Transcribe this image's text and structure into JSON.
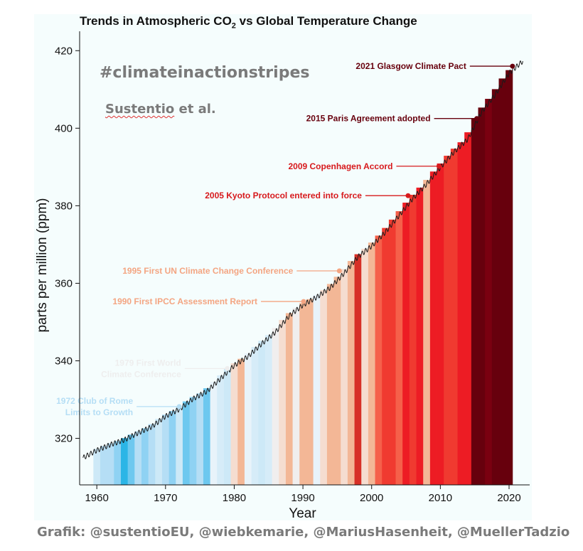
{
  "title_main": "Trends in Atmospheric CO",
  "title_sub": "2",
  "title_rest": " vs Global Temperature Change",
  "hashtag": "#climateinactionstripes",
  "author_name": "Sustentio",
  "author_suffix": " et al.",
  "credit": "Grafik: @sustentioEU, @wiebkemarie, @MariusHasenheit, @MuellerTadzio",
  "chart_data": {
    "type": "line",
    "xlabel": "Year",
    "ylabel": "parts per million (ppm)",
    "xlim": [
      1957.5,
      2023
    ],
    "ylim": [
      308,
      425
    ],
    "xticks": [
      1960,
      1970,
      1980,
      1990,
      2000,
      2010,
      2020
    ],
    "yticks": [
      320,
      340,
      360,
      380,
      400,
      420
    ],
    "grid": false,
    "series": [
      {
        "x": [
          1958,
          1960,
          1962,
          1964,
          1966,
          1968,
          1970,
          1972,
          1974,
          1976,
          1978,
          1980,
          1982,
          1984,
          1986,
          1988,
          1990,
          1992,
          1994,
          1996,
          1998,
          2000,
          2002,
          2004,
          2006,
          2008,
          2010,
          2012,
          2014,
          2016,
          2018,
          2020,
          2022
        ],
        "values": [
          315.0,
          316.9,
          318.4,
          319.6,
          321.4,
          323.0,
          325.7,
          327.5,
          330.2,
          332.1,
          335.4,
          338.8,
          341.1,
          344.4,
          347.4,
          351.6,
          354.4,
          356.4,
          358.9,
          362.6,
          366.8,
          369.6,
          373.2,
          377.5,
          381.9,
          385.6,
          389.9,
          393.9,
          397.2,
          404.2,
          408.7,
          414.2,
          417.3
        ]
      }
    ],
    "stripes": {
      "years": [
        1960,
        1961,
        1962,
        1963,
        1964,
        1965,
        1966,
        1967,
        1968,
        1969,
        1970,
        1971,
        1972,
        1973,
        1974,
        1975,
        1976,
        1977,
        1978,
        1979,
        1980,
        1981,
        1982,
        1983,
        1984,
        1985,
        1986,
        1987,
        1988,
        1989,
        1990,
        1991,
        1992,
        1993,
        1994,
        1995,
        1996,
        1997,
        1998,
        1999,
        2000,
        2001,
        2002,
        2003,
        2004,
        2005,
        2006,
        2007,
        2008,
        2009,
        2010,
        2011,
        2012,
        2013,
        2014,
        2015,
        2016,
        2017,
        2018,
        2019,
        2020
      ],
      "colors": [
        "#cde9f7",
        "#b5def5",
        "#b5def5",
        "#8fd2f3",
        "#2bb5e6",
        "#6dc8ef",
        "#b5def5",
        "#8fd2f3",
        "#b5def5",
        "#cde9f7",
        "#b5def5",
        "#8fd2f3",
        "#cde9f7",
        "#6dc8ef",
        "#8fd2f3",
        "#b5def5",
        "#6dc8ef",
        "#e8f3fa",
        "#d6ecf8",
        "#cde9f7",
        "#f5ddd0",
        "#f3b796",
        "#e8f3fa",
        "#d6ecf8",
        "#cde9f7",
        "#d6ecf8",
        "#f0eeee",
        "#f5ddd0",
        "#f3b796",
        "#f0eeee",
        "#f3b796",
        "#f3b796",
        "#e8f3fa",
        "#f5ddd0",
        "#f3b796",
        "#f3b796",
        "#f5ddd0",
        "#f3b796",
        "#d73027",
        "#f5ddd0",
        "#f3b796",
        "#f5604a",
        "#f03a30",
        "#f03a30",
        "#f5604a",
        "#ed1c24",
        "#f03a30",
        "#ed1c24",
        "#f3b796",
        "#ed1c24",
        "#ed1c24",
        "#f03a30",
        "#f03a30",
        "#ed1c24",
        "#ed1c24",
        "#67000d",
        "#67000d",
        "#7a0010",
        "#67000d",
        "#67000d",
        "#67000d"
      ]
    },
    "annotations": [
      {
        "label": "2021 Glasgow Climate Pact",
        "x": 2020.5,
        "y": 416.0,
        "color": "#67000d"
      },
      {
        "label": "2015 Paris Agreement adopted",
        "x": 2015.3,
        "y": 402.5,
        "color": "#67000d"
      },
      {
        "label": "2009 Copenhagen Accord",
        "x": 2009.8,
        "y": 390.2,
        "color": "#d7191c"
      },
      {
        "label": "2005 Kyoto Protocol entered into force",
        "x": 2005.3,
        "y": 382.6,
        "color": "#d7191c"
      },
      {
        "label": "1995 First UN Climate Change Conference",
        "x": 1995.3,
        "y": 363.2,
        "color": "#f4a582"
      },
      {
        "label": "1990 First IPCC Assessment Report",
        "x": 1990.1,
        "y": 355.3,
        "color": "#f4a582"
      },
      {
        "label": [
          "1979 First World",
          "Climate Conference"
        ],
        "x": 1979.0,
        "y": 338.0,
        "color": "#eeeeee"
      },
      {
        "label": [
          "1972 Club of Rome",
          "Limits to Growth"
        ],
        "x": 1972.0,
        "y": 328.2,
        "color": "#b5def5"
      }
    ]
  }
}
